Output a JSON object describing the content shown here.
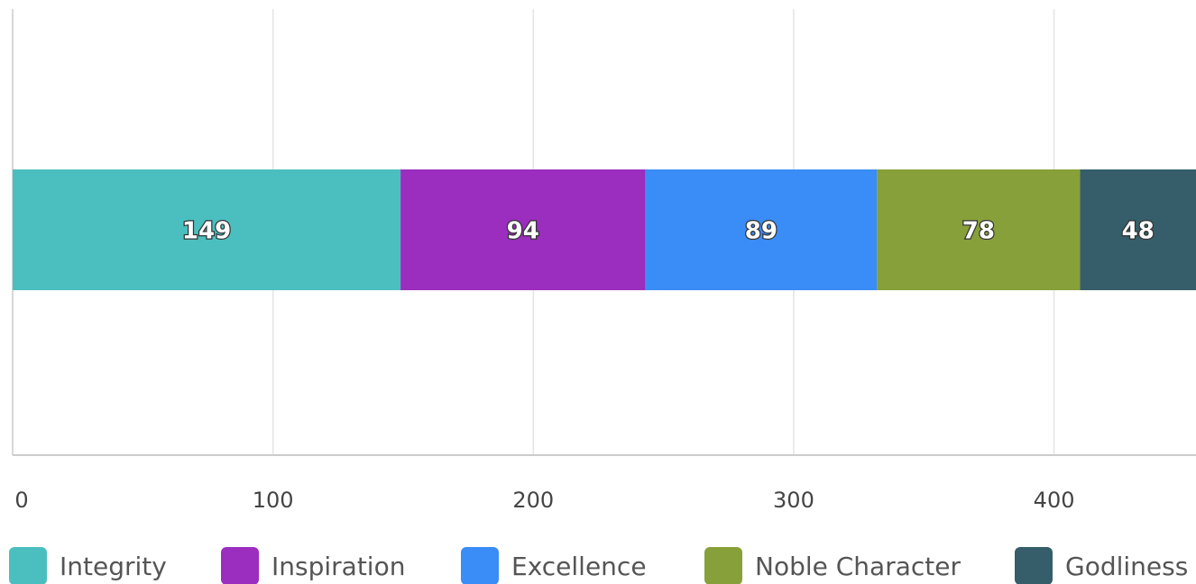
{
  "chart_data": {
    "type": "stacked_bar",
    "orientation": "horizontal",
    "categories": [
      null
    ],
    "series": [
      {
        "name": "Integrity",
        "color": "#4bbfbf",
        "values": [
          149
        ]
      },
      {
        "name": "Inspiration",
        "color": "#9b2dbf",
        "values": [
          94
        ]
      },
      {
        "name": "Excellence",
        "color": "#3a8cf7",
        "values": [
          89
        ]
      },
      {
        "name": "Noble Character",
        "color": "#87a03a",
        "values": [
          78
        ]
      },
      {
        "name": "Godliness",
        "color": "#355e6a",
        "values": [
          48
        ]
      }
    ],
    "xlim": [
      0,
      458
    ],
    "xticks": [
      0,
      100,
      200,
      300,
      400
    ],
    "grid": true,
    "legend": "bottom"
  }
}
